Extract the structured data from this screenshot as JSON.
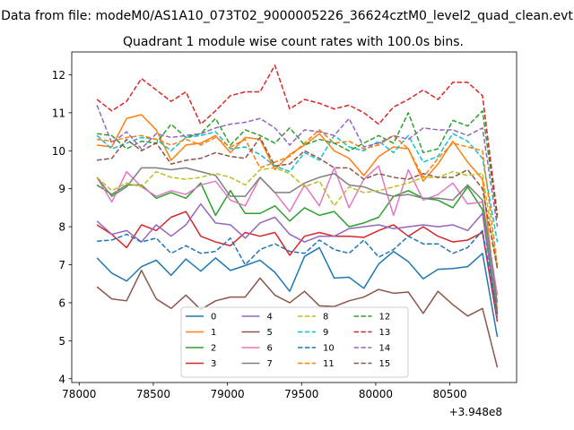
{
  "chart_data": {
    "type": "line",
    "suptitle": "Data from file: modeM0/AS1A10_073T02_9000005226_36624cztM0_level2_quad_clean.evt",
    "title": "Quadrant 1 module wise count rates with 100.0s bins.",
    "xlabel": "",
    "ylabel": "",
    "x_offset_label": "+3.948e8",
    "xlim": [
      77950,
      80950
    ],
    "ylim": [
      3.9,
      12.6
    ],
    "xticks": [
      78000,
      78500,
      79000,
      79500,
      80000,
      80500
    ],
    "xtick_labels": [
      "78000",
      "78500",
      "79000",
      "79500",
      "80000",
      "80500"
    ],
    "yticks": [
      4,
      5,
      6,
      7,
      8,
      9,
      10,
      11,
      12
    ],
    "ytick_labels": [
      "4",
      "5",
      "6",
      "7",
      "8",
      "9",
      "10",
      "11",
      "12"
    ],
    "legend_loc": "lower center",
    "legend_ncol": 4,
    "x": [
      78120,
      78220,
      78320,
      78420,
      78520,
      78620,
      78720,
      78820,
      78920,
      79020,
      79120,
      79220,
      79320,
      79420,
      79520,
      79620,
      79720,
      79820,
      79920,
      80020,
      80120,
      80220,
      80320,
      80420,
      80520,
      80620,
      80720,
      80820
    ],
    "series": [
      {
        "name": "0",
        "color": "#1f77b4",
        "dash": "solid",
        "values": [
          7.18,
          6.78,
          6.57,
          6.95,
          7.12,
          6.72,
          7.15,
          6.83,
          7.18,
          6.85,
          6.98,
          7.12,
          6.8,
          6.3,
          7.22,
          7.45,
          6.65,
          6.67,
          6.38,
          7.02,
          7.35,
          7.08,
          6.63,
          6.88,
          6.9,
          6.95,
          7.3,
          5.1
        ]
      },
      {
        "name": "1",
        "color": "#ff7f0e",
        "dash": "solid",
        "values": [
          10.15,
          10.1,
          10.85,
          10.95,
          10.55,
          9.75,
          10.15,
          10.2,
          10.4,
          9.95,
          10.35,
          10.3,
          9.5,
          9.9,
          10.15,
          10.45,
          10.0,
          9.8,
          9.35,
          9.85,
          10.1,
          10.05,
          9.2,
          9.65,
          10.25,
          9.7,
          9.25,
          5.8
        ]
      },
      {
        "name": "2",
        "color": "#2ca02c",
        "dash": "solid",
        "values": [
          9.1,
          8.85,
          9.1,
          9.1,
          8.75,
          8.9,
          8.75,
          9.15,
          8.3,
          8.95,
          8.35,
          8.35,
          8.55,
          8.15,
          8.5,
          8.3,
          8.4,
          8.0,
          8.1,
          8.25,
          8.8,
          8.95,
          8.75,
          8.7,
          8.5,
          9.05,
          8.45,
          5.7
        ]
      },
      {
        "name": "3",
        "color": "#d62728",
        "dash": "solid",
        "values": [
          8.05,
          7.8,
          7.45,
          8.05,
          7.9,
          8.25,
          8.4,
          7.75,
          7.6,
          7.5,
          7.85,
          7.75,
          7.85,
          7.25,
          7.75,
          7.85,
          7.75,
          7.75,
          7.72,
          7.9,
          8.05,
          7.75,
          8.0,
          7.75,
          7.6,
          7.65,
          7.85,
          5.5
        ]
      },
      {
        "name": "4",
        "color": "#9467bd",
        "dash": "solid",
        "values": [
          8.15,
          7.8,
          7.9,
          7.6,
          8.05,
          7.75,
          8.05,
          8.6,
          8.1,
          8.05,
          7.7,
          8.1,
          8.25,
          7.8,
          7.6,
          7.75,
          7.75,
          7.95,
          8.0,
          8.05,
          7.95,
          8.0,
          8.05,
          8.0,
          8.05,
          7.9,
          8.35,
          5.6
        ]
      },
      {
        "name": "5",
        "color": "#8c564b",
        "dash": "solid",
        "values": [
          6.42,
          6.1,
          6.05,
          6.85,
          6.1,
          5.85,
          6.2,
          5.82,
          6.05,
          6.15,
          6.15,
          6.65,
          6.2,
          6.0,
          6.3,
          5.92,
          5.9,
          6.05,
          6.15,
          6.35,
          6.25,
          6.28,
          5.72,
          6.3,
          5.95,
          5.65,
          5.85,
          4.3
        ]
      },
      {
        "name": "6",
        "color": "#e377c2",
        "dash": "solid",
        "values": [
          9.3,
          8.65,
          9.45,
          9.05,
          8.8,
          8.95,
          8.85,
          9.1,
          9.2,
          8.7,
          8.55,
          9.3,
          8.9,
          8.4,
          9.1,
          8.55,
          9.55,
          8.5,
          9.25,
          9.6,
          8.3,
          9.5,
          8.7,
          8.85,
          9.15,
          8.6,
          8.65,
          6.2
        ]
      },
      {
        "name": "7",
        "color": "#7f7f7f",
        "dash": "solid",
        "values": [
          9.3,
          8.8,
          9.05,
          9.55,
          9.55,
          9.5,
          9.55,
          9.45,
          9.35,
          8.8,
          8.8,
          9.3,
          8.9,
          8.9,
          9.15,
          9.3,
          9.4,
          9.1,
          9.05,
          8.9,
          8.8,
          8.85,
          8.75,
          8.75,
          8.7,
          9.1,
          8.7,
          6.0
        ]
      },
      {
        "name": "8",
        "color": "#bcbd22",
        "dash": "dashed",
        "values": [
          9.3,
          8.95,
          9.15,
          9.05,
          9.45,
          9.3,
          9.25,
          9.3,
          9.4,
          9.3,
          9.1,
          9.5,
          9.55,
          9.4,
          9.05,
          9.2,
          8.55,
          9.05,
          8.9,
          8.95,
          9.05,
          9.15,
          9.3,
          9.3,
          9.45,
          9.35,
          9.4,
          6.9
        ]
      },
      {
        "name": "9",
        "color": "#17becf",
        "dash": "dashed",
        "values": [
          10.4,
          10.05,
          10.2,
          10.35,
          10.3,
          10.0,
          10.35,
          10.4,
          10.5,
          10.05,
          10.1,
          9.9,
          9.6,
          9.45,
          9.95,
          9.75,
          10.4,
          10.1,
          10.0,
          10.25,
          9.95,
          10.4,
          9.7,
          9.85,
          10.45,
          10.25,
          9.8,
          7.6
        ]
      },
      {
        "name": "10",
        "color": "#1f77b4",
        "dash": "dashed",
        "values": [
          7.62,
          7.65,
          7.8,
          7.6,
          7.7,
          7.3,
          7.5,
          7.3,
          7.35,
          7.7,
          7.0,
          7.4,
          7.55,
          7.35,
          7.3,
          7.65,
          7.4,
          7.3,
          7.65,
          7.2,
          7.4,
          7.75,
          7.55,
          7.55,
          7.3,
          7.45,
          7.9,
          5.7
        ]
      },
      {
        "name": "11",
        "color": "#ff7f0e",
        "dash": "dashed",
        "values": [
          10.3,
          10.25,
          10.35,
          10.4,
          10.3,
          10.15,
          10.3,
          10.15,
          10.35,
          10.1,
          10.3,
          9.55,
          9.7,
          9.85,
          10.2,
          10.55,
          10.2,
          10.25,
          10.05,
          10.15,
          10.4,
          10.05,
          9.3,
          9.8,
          10.2,
          10.1,
          10.0,
          7.0
        ]
      },
      {
        "name": "12",
        "color": "#2ca02c",
        "dash": "dashed",
        "values": [
          10.45,
          10.4,
          10.05,
          10.25,
          10.2,
          10.7,
          10.35,
          10.45,
          10.85,
          10.15,
          10.55,
          10.4,
          10.2,
          10.6,
          10.15,
          10.3,
          10.2,
          10.0,
          10.2,
          10.4,
          10.2,
          11.0,
          9.95,
          10.05,
          10.8,
          10.65,
          11.05,
          8.2
        ]
      },
      {
        "name": "13",
        "color": "#d62728",
        "dash": "dashed",
        "values": [
          11.35,
          11.05,
          11.3,
          11.9,
          11.6,
          11.3,
          11.55,
          10.7,
          11.05,
          11.45,
          11.55,
          11.55,
          12.25,
          11.1,
          11.35,
          11.25,
          11.1,
          11.2,
          11.0,
          10.7,
          11.15,
          11.35,
          11.6,
          11.35,
          11.8,
          11.8,
          11.45,
          8.3
        ]
      },
      {
        "name": "14",
        "color": "#9467bd",
        "dash": "dashed",
        "values": [
          11.2,
          10.2,
          10.5,
          10.05,
          10.45,
          10.35,
          10.4,
          10.45,
          10.6,
          10.7,
          10.75,
          10.85,
          10.6,
          10.15,
          10.55,
          10.5,
          10.4,
          10.85,
          10.1,
          10.2,
          10.4,
          10.3,
          10.6,
          10.55,
          10.55,
          10.4,
          10.6,
          8.0
        ]
      },
      {
        "name": "15",
        "color": "#8c564b",
        "dash": "dashed",
        "values": [
          9.75,
          9.8,
          10.3,
          10.0,
          10.2,
          9.65,
          9.75,
          9.8,
          9.95,
          9.85,
          9.8,
          10.35,
          9.6,
          9.65,
          10.0,
          9.8,
          9.55,
          9.55,
          9.25,
          9.4,
          9.3,
          9.25,
          9.4,
          9.3,
          9.3,
          9.5,
          9.0,
          6.9
        ]
      }
    ]
  }
}
